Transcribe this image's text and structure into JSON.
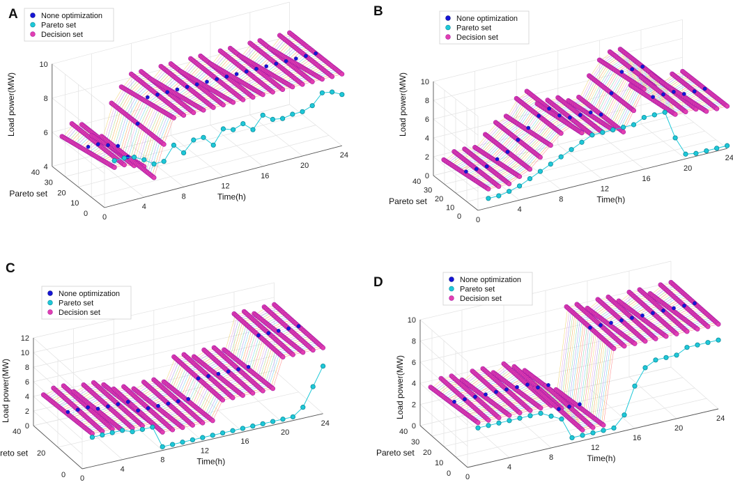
{
  "colors": {
    "none": "#1515d8",
    "pareto": "#1ec8d8",
    "pareto_edge": "#0a8a9a",
    "decision": "#e23fb0",
    "decision_edge": "#a61aa6"
  },
  "chart_data": [
    {
      "type": "scatter3d",
      "panel_label": "A",
      "ylabel": "Load power(MW)",
      "xlabel": "Time(h)",
      "zlabel": "Pareto set",
      "xlim": [
        0,
        24
      ],
      "xticks": [
        "0",
        "4",
        "8",
        "12",
        "16",
        "20",
        "24"
      ],
      "zlim": [
        0,
        40
      ],
      "zticks": [
        "0",
        "10",
        "20",
        "30",
        "40"
      ],
      "ylim": [
        4,
        10
      ],
      "yticks": [
        "4",
        "6",
        "8",
        "10"
      ],
      "legend": [
        "None optimization",
        "Pareto set",
        "Decision set"
      ],
      "series": [
        {
          "name": "None optimization",
          "x": [
            1,
            2,
            3,
            4,
            5,
            6,
            7,
            8,
            9,
            10,
            11,
            12,
            13,
            14,
            15,
            16,
            17,
            18,
            19,
            20,
            21,
            22,
            23,
            24
          ],
          "y": [
            6.2,
            6.2,
            6.0,
            5.8,
            5.0,
            6.8,
            8.2,
            8.2,
            8.2,
            8.2,
            8.2,
            8.2,
            8.2,
            8.2,
            8.2,
            8.2,
            8.2,
            8.2,
            8.2,
            8.2,
            8.2,
            8.2,
            8.2,
            8.2
          ]
        },
        {
          "name": "Pareto set",
          "x": [
            1,
            2,
            3,
            4,
            5,
            6,
            7,
            8,
            9,
            10,
            11,
            12,
            13,
            14,
            15,
            16,
            17,
            18,
            19,
            20,
            21,
            22,
            23,
            24
          ],
          "y": [
            6.6,
            6.6,
            6.5,
            6.2,
            5.8,
            5.8,
            6.6,
            6.0,
            6.6,
            6.6,
            6.0,
            6.8,
            6.6,
            6.8,
            6.3,
            7.0,
            6.6,
            6.5,
            6.6,
            6.6,
            6.8,
            7.4,
            7.3,
            7.0
          ]
        },
        {
          "name": "Decision set",
          "n_solutions": 40,
          "x": [
            1,
            2,
            3,
            4,
            5,
            6,
            7,
            8,
            9,
            10,
            11,
            12,
            13,
            14,
            15,
            16,
            17,
            18,
            19,
            20,
            21,
            22,
            23,
            24
          ],
          "y": [
            6.2,
            6.2,
            6.0,
            5.8,
            5.0,
            6.8,
            8.2,
            8.2,
            8.2,
            8.2,
            8.2,
            8.2,
            8.2,
            8.2,
            8.2,
            8.2,
            8.2,
            8.2,
            8.2,
            8.2,
            8.2,
            8.2,
            8.2,
            8.2
          ]
        }
      ]
    },
    {
      "type": "scatter3d",
      "panel_label": "B",
      "ylabel": "Load power(MW)",
      "xlabel": "Time(h)",
      "zlabel": "Pareto set",
      "xlim": [
        0,
        24
      ],
      "xticks": [
        "0",
        "4",
        "8",
        "12",
        "16",
        "20",
        "24"
      ],
      "zlim": [
        0,
        40
      ],
      "zticks": [
        "0",
        "10",
        "20",
        "30",
        "40"
      ],
      "ylim": [
        0,
        10
      ],
      "yticks": [
        "0",
        "2",
        "4",
        "6",
        "8",
        "10"
      ],
      "legend": [
        "None optimization",
        "Pareto set",
        "Decision set"
      ],
      "series": [
        {
          "name": "None optimization",
          "x": [
            1,
            2,
            3,
            4,
            5,
            6,
            7,
            8,
            9,
            10,
            11,
            12,
            13,
            14,
            15,
            16,
            17,
            18,
            19,
            20,
            21,
            22,
            23,
            24
          ],
          "y": [
            2.0,
            2.0,
            2.0,
            2.5,
            3.0,
            4.0,
            5.0,
            6.0,
            6.5,
            5.5,
            5.0,
            5.0,
            5.0,
            4.5,
            6.5,
            8.5,
            8.5,
            8.5,
            5.0,
            5.0,
            5.0,
            4.5,
            4.5,
            4.5
          ]
        },
        {
          "name": "Pareto set",
          "x": [
            1,
            2,
            3,
            4,
            5,
            6,
            7,
            8,
            9,
            10,
            11,
            12,
            13,
            14,
            15,
            16,
            17,
            18,
            19,
            20,
            21,
            22,
            23,
            24
          ],
          "y": [
            1.0,
            1.0,
            1.2,
            1.5,
            2.0,
            2.5,
            3.0,
            3.5,
            4.0,
            4.5,
            5.0,
            5.0,
            5.0,
            5.0,
            5.0,
            5.5,
            5.5,
            5.5,
            2.5,
            0.5,
            0.3,
            0.3,
            0.3,
            0.3
          ]
        },
        {
          "name": "Decision set",
          "n_solutions": 40,
          "x": [
            1,
            2,
            3,
            4,
            5,
            6,
            7,
            8,
            9,
            10,
            11,
            12,
            13,
            14,
            15,
            16,
            17,
            18,
            19,
            20,
            21,
            22,
            23,
            24
          ],
          "y": [
            2.0,
            2.0,
            2.0,
            2.5,
            3.0,
            4.0,
            5.0,
            6.0,
            6.5,
            5.5,
            5.0,
            5.0,
            5.0,
            4.5,
            6.5,
            8.5,
            8.5,
            8.5,
            5.0,
            5.0,
            5.0,
            4.5,
            4.5,
            4.5
          ]
        }
      ]
    },
    {
      "type": "scatter3d",
      "panel_label": "C",
      "ylabel": "Load power(MW)",
      "xlabel": "Time(h)",
      "zlabel": "Pareto set",
      "xlim": [
        0,
        24
      ],
      "xticks": [
        "0",
        "4",
        "8",
        "12",
        "16",
        "20",
        "24"
      ],
      "zlim": [
        0,
        40
      ],
      "zticks": [
        "0",
        "20",
        "40"
      ],
      "ylim": [
        0,
        12
      ],
      "yticks": [
        "0",
        "2",
        "4",
        "6",
        "8",
        "10",
        "12"
      ],
      "legend": [
        "None optimization",
        "Pareto set",
        "Decision set"
      ],
      "series": [
        {
          "name": "None optimization",
          "x": [
            1,
            2,
            3,
            4,
            5,
            6,
            7,
            8,
            9,
            10,
            11,
            12,
            13,
            14,
            15,
            16,
            17,
            18,
            19,
            20,
            21,
            22,
            23,
            24
          ],
          "y": [
            4.5,
            4.5,
            4.5,
            4.0,
            4.0,
            4.0,
            4.0,
            2.5,
            2.5,
            2.5,
            2.5,
            2.5,
            2.5,
            5.0,
            5.0,
            5.0,
            5.0,
            5.0,
            5.0,
            9.0,
            9.0,
            9.0,
            9.0,
            9.0
          ]
        },
        {
          "name": "Pareto set",
          "x": [
            1,
            2,
            3,
            4,
            5,
            6,
            7,
            8,
            9,
            10,
            11,
            12,
            13,
            14,
            15,
            16,
            17,
            18,
            19,
            20,
            21,
            22,
            23,
            24
          ],
          "y": [
            4.0,
            4.0,
            4.0,
            4.0,
            3.5,
            3.5,
            3.5,
            0.5,
            0.5,
            0.5,
            0.5,
            0.5,
            0.5,
            0.5,
            0.5,
            0.5,
            0.5,
            0.5,
            0.5,
            0.5,
            0.5,
            1.5,
            4.0,
            6.5
          ]
        },
        {
          "name": "Decision set",
          "n_solutions": 40,
          "x": [
            1,
            2,
            3,
            4,
            5,
            6,
            7,
            8,
            9,
            10,
            11,
            12,
            13,
            14,
            15,
            16,
            17,
            18,
            19,
            20,
            21,
            22,
            23,
            24
          ],
          "y": [
            4.5,
            4.5,
            4.5,
            4.0,
            4.0,
            4.0,
            4.0,
            2.5,
            2.5,
            2.5,
            2.5,
            2.5,
            2.5,
            5.0,
            5.0,
            5.0,
            5.0,
            5.0,
            5.0,
            9.0,
            9.0,
            9.0,
            9.0,
            9.0
          ]
        }
      ]
    },
    {
      "type": "scatter3d",
      "panel_label": "D",
      "ylabel": "Load power(MW)",
      "xlabel": "Time(h)",
      "zlabel": "Pareto set",
      "xlim": [
        0,
        24
      ],
      "xticks": [
        "0",
        "4",
        "8",
        "12",
        "16",
        "20",
        "24"
      ],
      "zlim": [
        0,
        40
      ],
      "zticks": [
        "0",
        "10",
        "20",
        "30",
        "40"
      ],
      "ylim": [
        0,
        10
      ],
      "yticks": [
        "0",
        "2",
        "4",
        "6",
        "8",
        "10"
      ],
      "legend": [
        "None optimization",
        "Pareto set",
        "Decision set"
      ],
      "series": [
        {
          "name": "None optimization",
          "x": [
            1,
            2,
            3,
            4,
            5,
            6,
            7,
            8,
            9,
            10,
            11,
            12,
            13,
            14,
            15,
            16,
            17,
            18,
            19,
            20,
            21,
            22,
            23,
            24
          ],
          "y": [
            4.0,
            4.0,
            4.0,
            4.0,
            4.0,
            4.0,
            4.0,
            4.0,
            3.5,
            3.5,
            1.0,
            1.0,
            1.0,
            8.0,
            8.0,
            8.0,
            8.0,
            8.0,
            8.0,
            8.0,
            8.0,
            8.0,
            8.0,
            8.0
          ]
        },
        {
          "name": "Pareto set",
          "x": [
            1,
            2,
            3,
            4,
            5,
            6,
            7,
            8,
            9,
            10,
            11,
            12,
            13,
            14,
            15,
            16,
            17,
            18,
            19,
            20,
            21,
            22,
            23,
            24
          ],
          "y": [
            3.5,
            3.5,
            3.5,
            3.5,
            3.5,
            3.5,
            3.5,
            3.0,
            2.5,
            0.5,
            0.5,
            0.5,
            0.5,
            0.5,
            1.5,
            4.0,
            5.5,
            6.0,
            6.0,
            6.0,
            6.5,
            6.5,
            6.5,
            6.5
          ]
        },
        {
          "name": "Decision set",
          "n_solutions": 40,
          "x": [
            1,
            2,
            3,
            4,
            5,
            6,
            7,
            8,
            9,
            10,
            11,
            12,
            13,
            14,
            15,
            16,
            17,
            18,
            19,
            20,
            21,
            22,
            23,
            24
          ],
          "y": [
            4.0,
            4.0,
            4.0,
            4.0,
            4.0,
            4.0,
            4.0,
            4.0,
            3.5,
            3.5,
            1.0,
            1.0,
            1.0,
            8.0,
            8.0,
            8.0,
            8.0,
            8.0,
            8.0,
            8.0,
            8.0,
            8.0,
            8.0,
            8.0
          ]
        }
      ]
    }
  ]
}
